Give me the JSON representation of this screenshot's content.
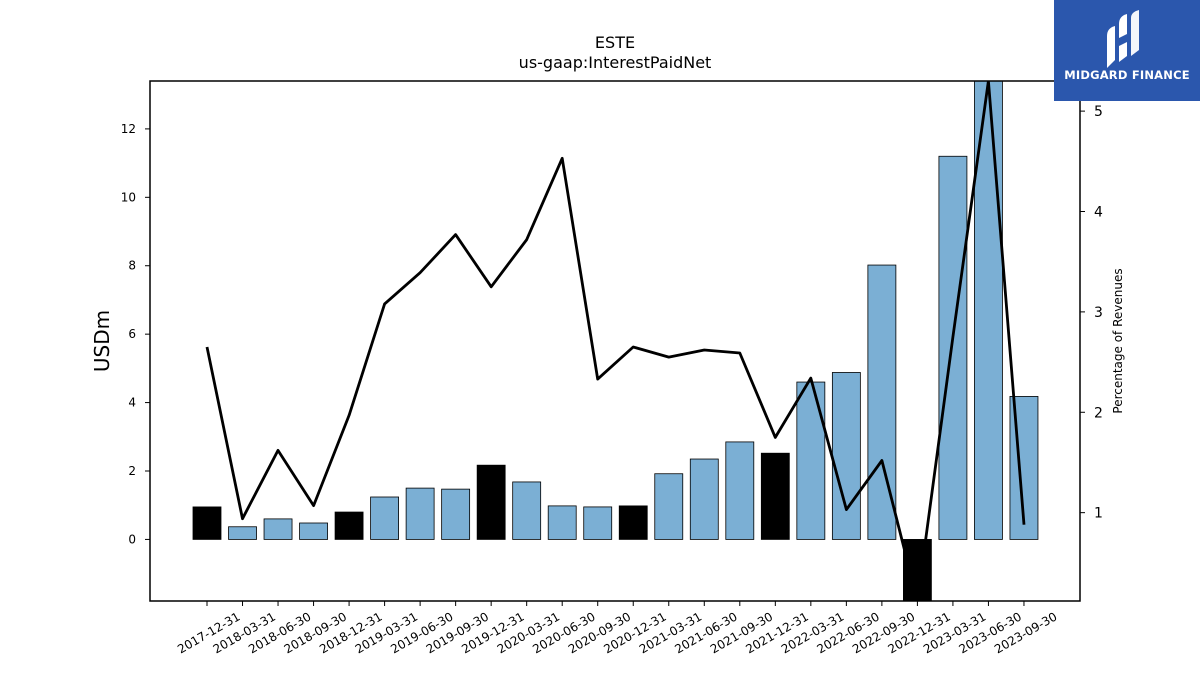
{
  "logo": {
    "text": "MIDGARD FINANCE",
    "icon": "midgard-logo-icon",
    "background": "#2b57ad"
  },
  "chart_data": {
    "type": "bar",
    "title": "ESTE",
    "subtitle": "us-gaap:InterestPaidNet",
    "ylabel": "USDm",
    "ylabel_right": "Percentage of Revenues",
    "ylim": [
      -1.8,
      13.4
    ],
    "ylim_right": [
      0.12,
      5.3
    ],
    "yticks": [
      0,
      2,
      4,
      6,
      8,
      10,
      12
    ],
    "yticks_right": [
      1,
      2,
      3,
      4,
      5
    ],
    "grid": false,
    "colors": {
      "quarter_bar": "#7bafd4",
      "year_end_bar": "#000000",
      "line": "#000000"
    },
    "categories": [
      "2017-12-31",
      "2018-03-31",
      "2018-06-30",
      "2018-09-30",
      "2018-12-31",
      "2019-03-31",
      "2019-06-30",
      "2019-09-30",
      "2019-12-31",
      "2020-03-31",
      "2020-06-30",
      "2020-09-30",
      "2020-12-31",
      "2021-03-31",
      "2021-06-30",
      "2021-09-30",
      "2021-12-31",
      "2022-03-31",
      "2022-06-30",
      "2022-09-30",
      "2022-12-31",
      "2023-03-31",
      "2023-06-30",
      "2023-09-30"
    ],
    "series": [
      {
        "type": "bar",
        "values": [
          0.95,
          0.37,
          0.6,
          0.48,
          0.8,
          1.24,
          1.5,
          1.47,
          2.17,
          1.68,
          0.98,
          0.95,
          0.98,
          1.92,
          2.35,
          2.85,
          2.52,
          4.6,
          4.88,
          8.02,
          -1.8,
          11.2,
          13.4,
          4.18
        ],
        "year_end": [
          true,
          false,
          false,
          false,
          true,
          false,
          false,
          false,
          true,
          false,
          false,
          false,
          true,
          false,
          false,
          false,
          true,
          false,
          false,
          false,
          true,
          false,
          false,
          false
        ]
      },
      {
        "type": "line",
        "axis": "right",
        "values": [
          2.65,
          0.94,
          1.62,
          1.07,
          1.97,
          3.08,
          3.39,
          3.77,
          3.25,
          3.72,
          4.53,
          2.33,
          2.65,
          2.55,
          2.62,
          2.59,
          1.75,
          2.34,
          1.03,
          1.52,
          0.12,
          2.75,
          5.3,
          0.88
        ]
      }
    ]
  }
}
